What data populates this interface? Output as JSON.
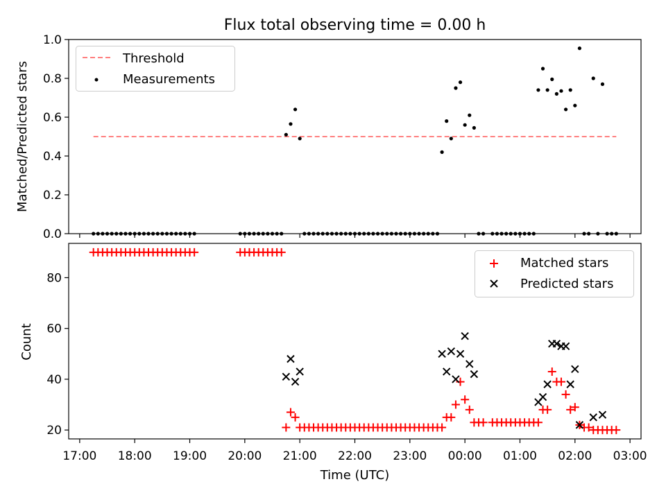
{
  "chart_data": [
    {
      "type": "scatter",
      "title": "Flux total observing time = 0.00 h",
      "xlabel": "",
      "ylabel": "Matched/Predicted stars",
      "xlim": [
        "16:48",
        "03:12"
      ],
      "ylim": [
        0,
        1.0
      ],
      "yticks": [
        "0.0",
        "0.2",
        "0.4",
        "0.6",
        "0.8",
        "1.0"
      ],
      "legend": {
        "location": "upper left",
        "entries": [
          "Threshold",
          "Measurements"
        ]
      },
      "threshold": {
        "name": "Threshold",
        "color": "#ff7f7f",
        "style": "dashed",
        "y": 0.5,
        "x": [
          "17:15",
          "02:45"
        ]
      },
      "series": [
        {
          "name": "Measurements",
          "color": "#000000",
          "points": [
            [
              "17:15",
              0
            ],
            [
              "17:20",
              0
            ],
            [
              "17:25",
              0
            ],
            [
              "17:30",
              0
            ],
            [
              "17:35",
              0
            ],
            [
              "17:40",
              0
            ],
            [
              "17:45",
              0
            ],
            [
              "17:50",
              0
            ],
            [
              "17:55",
              0
            ],
            [
              "18:00",
              0
            ],
            [
              "18:05",
              0
            ],
            [
              "18:10",
              0
            ],
            [
              "18:15",
              0
            ],
            [
              "18:20",
              0
            ],
            [
              "18:25",
              0
            ],
            [
              "18:30",
              0
            ],
            [
              "18:35",
              0
            ],
            [
              "18:40",
              0
            ],
            [
              "18:45",
              0
            ],
            [
              "18:50",
              0
            ],
            [
              "18:55",
              0
            ],
            [
              "19:00",
              0
            ],
            [
              "19:05",
              0
            ],
            [
              "19:55",
              0
            ],
            [
              "20:00",
              0
            ],
            [
              "20:05",
              0
            ],
            [
              "20:10",
              0
            ],
            [
              "20:15",
              0
            ],
            [
              "20:20",
              0
            ],
            [
              "20:25",
              0
            ],
            [
              "20:30",
              0
            ],
            [
              "20:35",
              0
            ],
            [
              "20:40",
              0
            ],
            [
              "20:45",
              0.51
            ],
            [
              "20:50",
              0.565
            ],
            [
              "20:55",
              0.64
            ],
            [
              "21:00",
              0.49
            ],
            [
              "21:05",
              0
            ],
            [
              "21:10",
              0
            ],
            [
              "21:15",
              0
            ],
            [
              "21:20",
              0
            ],
            [
              "21:25",
              0
            ],
            [
              "21:30",
              0
            ],
            [
              "21:35",
              0
            ],
            [
              "21:40",
              0
            ],
            [
              "21:45",
              0
            ],
            [
              "21:50",
              0
            ],
            [
              "21:55",
              0
            ],
            [
              "22:00",
              0
            ],
            [
              "22:05",
              0
            ],
            [
              "22:10",
              0
            ],
            [
              "22:15",
              0
            ],
            [
              "22:20",
              0
            ],
            [
              "22:25",
              0
            ],
            [
              "22:30",
              0
            ],
            [
              "22:35",
              0
            ],
            [
              "22:40",
              0
            ],
            [
              "22:45",
              0
            ],
            [
              "22:50",
              0
            ],
            [
              "22:55",
              0
            ],
            [
              "23:00",
              0
            ],
            [
              "23:05",
              0
            ],
            [
              "23:10",
              0
            ],
            [
              "23:15",
              0
            ],
            [
              "23:20",
              0
            ],
            [
              "23:25",
              0
            ],
            [
              "23:30",
              0
            ],
            [
              "23:35",
              0.42
            ],
            [
              "23:40",
              0.58
            ],
            [
              "23:45",
              0.49
            ],
            [
              "23:50",
              0.75
            ],
            [
              "23:55",
              0.78
            ],
            [
              "00:00",
              0.56
            ],
            [
              "00:05",
              0.61
            ],
            [
              "00:10",
              0.545
            ],
            [
              "00:15",
              0
            ],
            [
              "00:20",
              0
            ],
            [
              "00:30",
              0
            ],
            [
              "00:35",
              0
            ],
            [
              "00:40",
              0
            ],
            [
              "00:45",
              0
            ],
            [
              "00:50",
              0
            ],
            [
              "00:55",
              0
            ],
            [
              "01:00",
              0
            ],
            [
              "01:05",
              0
            ],
            [
              "01:10",
              0
            ],
            [
              "01:15",
              0
            ],
            [
              "01:20",
              0.74
            ],
            [
              "01:25",
              0.85
            ],
            [
              "01:30",
              0.74
            ],
            [
              "01:35",
              0.795
            ],
            [
              "01:40",
              0.72
            ],
            [
              "01:45",
              0.735
            ],
            [
              "01:50",
              0.64
            ],
            [
              "01:55",
              0.74
            ],
            [
              "02:00",
              0.66
            ],
            [
              "02:05",
              0.955
            ],
            [
              "02:10",
              0
            ],
            [
              "02:15",
              0
            ],
            [
              "02:20",
              0.8
            ],
            [
              "02:25",
              0
            ],
            [
              "02:30",
              0.77
            ],
            [
              "02:35",
              0
            ],
            [
              "02:40",
              0
            ],
            [
              "02:45",
              0
            ]
          ]
        }
      ]
    },
    {
      "type": "scatter",
      "title": "",
      "xlabel": "Time (UTC)",
      "ylabel": "Count",
      "xlim": [
        "16:48",
        "03:12"
      ],
      "ylim": [
        16.5,
        93.5
      ],
      "yticks": [
        "20",
        "40",
        "60",
        "80"
      ],
      "xticks": [
        "17:00",
        "18:00",
        "19:00",
        "20:00",
        "21:00",
        "22:00",
        "23:00",
        "00:00",
        "01:00",
        "02:00",
        "03:00"
      ],
      "legend": {
        "location": "upper right",
        "entries": [
          "Matched stars",
          "Predicted stars"
        ]
      },
      "series": [
        {
          "name": "Matched stars",
          "marker": "+",
          "color": "#ff0000",
          "points": [
            [
              "17:15",
              90
            ],
            [
              "17:20",
              90
            ],
            [
              "17:25",
              90
            ],
            [
              "17:30",
              90
            ],
            [
              "17:35",
              90
            ],
            [
              "17:40",
              90
            ],
            [
              "17:45",
              90
            ],
            [
              "17:50",
              90
            ],
            [
              "17:55",
              90
            ],
            [
              "18:00",
              90
            ],
            [
              "18:05",
              90
            ],
            [
              "18:10",
              90
            ],
            [
              "18:15",
              90
            ],
            [
              "18:20",
              90
            ],
            [
              "18:25",
              90
            ],
            [
              "18:30",
              90
            ],
            [
              "18:35",
              90
            ],
            [
              "18:40",
              90
            ],
            [
              "18:45",
              90
            ],
            [
              "18:50",
              90
            ],
            [
              "18:55",
              90
            ],
            [
              "19:00",
              90
            ],
            [
              "19:05",
              90
            ],
            [
              "19:55",
              90
            ],
            [
              "20:00",
              90
            ],
            [
              "20:05",
              90
            ],
            [
              "20:10",
              90
            ],
            [
              "20:15",
              90
            ],
            [
              "20:20",
              90
            ],
            [
              "20:25",
              90
            ],
            [
              "20:30",
              90
            ],
            [
              "20:35",
              90
            ],
            [
              "20:40",
              90
            ],
            [
              "20:45",
              21
            ],
            [
              "20:50",
              27
            ],
            [
              "20:55",
              25
            ],
            [
              "21:00",
              21
            ],
            [
              "21:05",
              21
            ],
            [
              "21:10",
              21
            ],
            [
              "21:15",
              21
            ],
            [
              "21:20",
              21
            ],
            [
              "21:25",
              21
            ],
            [
              "21:30",
              21
            ],
            [
              "21:35",
              21
            ],
            [
              "21:40",
              21
            ],
            [
              "21:45",
              21
            ],
            [
              "21:50",
              21
            ],
            [
              "21:55",
              21
            ],
            [
              "22:00",
              21
            ],
            [
              "22:05",
              21
            ],
            [
              "22:10",
              21
            ],
            [
              "22:15",
              21
            ],
            [
              "22:20",
              21
            ],
            [
              "22:25",
              21
            ],
            [
              "22:30",
              21
            ],
            [
              "22:35",
              21
            ],
            [
              "22:40",
              21
            ],
            [
              "22:45",
              21
            ],
            [
              "22:50",
              21
            ],
            [
              "22:55",
              21
            ],
            [
              "23:00",
              21
            ],
            [
              "23:05",
              21
            ],
            [
              "23:10",
              21
            ],
            [
              "23:15",
              21
            ],
            [
              "23:20",
              21
            ],
            [
              "23:25",
              21
            ],
            [
              "23:30",
              21
            ],
            [
              "23:35",
              21
            ],
            [
              "23:40",
              25
            ],
            [
              "23:45",
              25
            ],
            [
              "23:50",
              30
            ],
            [
              "23:55",
              39
            ],
            [
              "00:00",
              32
            ],
            [
              "00:05",
              28
            ],
            [
              "00:10",
              23
            ],
            [
              "00:15",
              23
            ],
            [
              "00:20",
              23
            ],
            [
              "00:30",
              23
            ],
            [
              "00:35",
              23
            ],
            [
              "00:40",
              23
            ],
            [
              "00:45",
              23
            ],
            [
              "00:50",
              23
            ],
            [
              "00:55",
              23
            ],
            [
              "01:00",
              23
            ],
            [
              "01:05",
              23
            ],
            [
              "01:10",
              23
            ],
            [
              "01:15",
              23
            ],
            [
              "01:20",
              23
            ],
            [
              "01:25",
              28
            ],
            [
              "01:30",
              28
            ],
            [
              "01:35",
              43
            ],
            [
              "01:40",
              39
            ],
            [
              "01:45",
              39
            ],
            [
              "01:50",
              34
            ],
            [
              "01:55",
              28
            ],
            [
              "02:00",
              29
            ],
            [
              "02:05",
              22
            ],
            [
              "02:10",
              21
            ],
            [
              "02:15",
              21
            ],
            [
              "02:20",
              20
            ],
            [
              "02:25",
              20
            ],
            [
              "02:30",
              20
            ],
            [
              "02:35",
              20
            ],
            [
              "02:40",
              20
            ],
            [
              "02:45",
              20
            ]
          ]
        },
        {
          "name": "Predicted stars",
          "marker": "x",
          "color": "#000000",
          "points": [
            [
              "20:45",
              41
            ],
            [
              "20:50",
              48
            ],
            [
              "20:55",
              39
            ],
            [
              "21:00",
              43
            ],
            [
              "23:35",
              50
            ],
            [
              "23:40",
              43
            ],
            [
              "23:45",
              51
            ],
            [
              "23:50",
              40
            ],
            [
              "23:55",
              50
            ],
            [
              "00:00",
              57
            ],
            [
              "00:05",
              46
            ],
            [
              "00:10",
              42
            ],
            [
              "01:20",
              31
            ],
            [
              "01:25",
              33
            ],
            [
              "01:30",
              38
            ],
            [
              "01:35",
              54
            ],
            [
              "01:40",
              54
            ],
            [
              "01:45",
              53
            ],
            [
              "01:50",
              53
            ],
            [
              "01:55",
              38
            ],
            [
              "02:00",
              44
            ],
            [
              "02:05",
              22
            ],
            [
              "02:20",
              25
            ],
            [
              "02:30",
              26
            ]
          ]
        }
      ]
    }
  ]
}
